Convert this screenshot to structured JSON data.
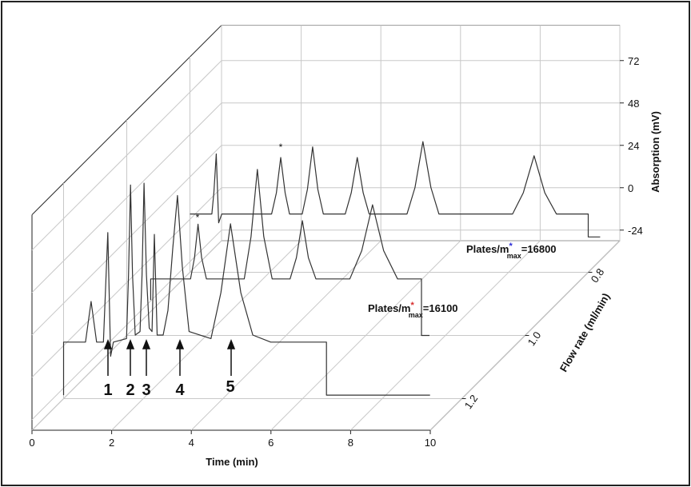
{
  "chart_data": {
    "type": "waterfall",
    "xlabel": "Time (min)",
    "ylabel": "Absorption (mV)",
    "zlabel": "Flow rate (ml/min)",
    "xlim": [
      0,
      10
    ],
    "xticks": [
      0,
      2,
      4,
      6,
      8,
      10
    ],
    "ylim": [
      -30,
      92
    ],
    "yticks": [
      -24,
      0,
      24,
      48,
      72
    ],
    "zlim": [
      1.3,
      0.7
    ],
    "zticks": [
      1.2,
      {
        "value": 1.0,
        "label": "1.0"
      },
      0.8
    ],
    "grid": true,
    "color": "#333333",
    "series": [
      {
        "z": 0.8,
        "x": [
          0,
          0.55,
          0.6,
          0.66,
          0.72,
          0.8,
          2.05,
          2.17,
          2.28,
          2.39,
          2.5,
          2.82,
          2.95,
          3.08,
          3.21,
          3.35,
          3.9,
          4.05,
          4.2,
          4.35,
          4.5,
          5.45,
          5.65,
          5.85,
          6.05,
          6.25,
          8.1,
          8.37,
          8.64,
          8.91,
          9.2,
          10.0,
          10.0,
          10.3
        ],
        "values": [
          3,
          3,
          15,
          37,
          -2,
          3,
          3,
          15,
          35,
          15,
          3,
          3,
          17,
          41,
          17,
          3,
          3,
          15,
          35,
          15,
          3,
          3,
          18,
          44,
          18,
          3,
          3,
          15,
          36,
          15,
          3,
          3,
          -10,
          -10
        ]
      },
      {
        "z": 1.0,
        "x": [
          0.6,
          0.6,
          1.6,
          1.7,
          1.79,
          1.88,
          2.0,
          2.95,
          3.12,
          3.28,
          3.44,
          3.65,
          4.1,
          4.26,
          4.41,
          4.56,
          4.75,
          5.6,
          5.9,
          6.17,
          6.45,
          6.8,
          7.4,
          7.4,
          7.6
        ],
        "values": [
          -10,
          2,
          2,
          14,
          33,
          14,
          2,
          2,
          26,
          64,
          26,
          2,
          2,
          14,
          35,
          14,
          2,
          2,
          18,
          44,
          18,
          2,
          2,
          -30,
          -30
        ]
      },
      {
        "z": 1.2,
        "x": [
          0,
          0,
          0.55,
          0.69,
          0.83,
          1.0,
          1.11,
          1.18,
          1.25,
          1.58,
          1.63,
          1.68,
          1.73,
          1.8,
          1.92,
          1.97,
          2.02,
          2.08,
          2.15,
          2.22,
          2.28,
          2.35,
          2.5,
          2.62,
          2.74,
          2.86,
          2.98,
          3.15,
          3.7,
          3.95,
          4.19,
          4.45,
          4.75,
          5.2,
          6.6,
          6.6,
          9.2
        ],
        "values": [
          -28,
          2,
          2,
          25,
          2,
          2,
          64,
          -6,
          2,
          4,
          40,
          91,
          40,
          6,
          8,
          40,
          92,
          40,
          10,
          8,
          63,
          6,
          6,
          20,
          55,
          85,
          45,
          8,
          4,
          30,
          69,
          30,
          6,
          2,
          2,
          -28,
          -28
        ]
      }
    ],
    "annotations": [
      {
        "main": "Plates/m",
        "sup": "*",
        "sub": "max",
        "value": "=16800",
        "color": "#2b2bd6"
      },
      {
        "main": "Plates/m",
        "sup": "*",
        "sub": "max",
        "value": "=16100",
        "color": "#d62b2b"
      }
    ],
    "peak_labels": [
      "1",
      "2",
      "3",
      "4",
      "5"
    ]
  }
}
